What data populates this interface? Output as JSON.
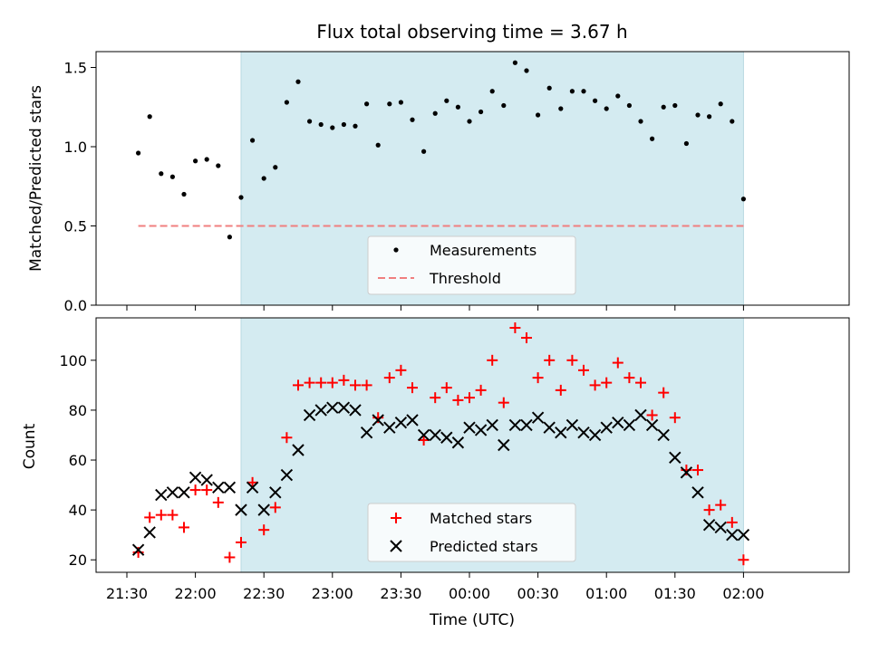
{
  "chart_data": {
    "title": "Flux total observing time = 3.67 h",
    "xlabel": "Time (UTC)",
    "x_ticks": [
      "21:30",
      "22:00",
      "22:30",
      "23:00",
      "23:30",
      "00:00",
      "00:30",
      "01:00",
      "01:30",
      "02:00"
    ],
    "shaded_region": {
      "start_min": 50,
      "end_min": 270,
      "color": "#d4ebf1"
    },
    "colors": {
      "measurements": "#000000",
      "threshold": "#f07f7f",
      "matched": "#ff0000",
      "predicted": "#000000"
    },
    "panels": [
      {
        "type": "scatter",
        "ylabel": "Matched/Predicted stars",
        "ylim": [
          0,
          1.6
        ],
        "y_ticks": [
          "0.0",
          "0.5",
          "1.0",
          "1.5"
        ],
        "legend": {
          "placement": "lower-center",
          "entries": [
            "Measurements",
            "Threshold"
          ]
        },
        "series": [
          {
            "name": "Measurements",
            "marker": "dot",
            "x_min": [
              5,
              10,
              15,
              20,
              25,
              30,
              35,
              40,
              45,
              50,
              55,
              60,
              65,
              70,
              75,
              80,
              85,
              90,
              95,
              100,
              105,
              110,
              115,
              120,
              125,
              130,
              135,
              140,
              145,
              150,
              155,
              160,
              165,
              170,
              175,
              180,
              185,
              190,
              195,
              200,
              205,
              210,
              215,
              220,
              225,
              230,
              235,
              240,
              245,
              250,
              255,
              260,
              265,
              270
            ],
            "y": [
              0.96,
              1.19,
              0.83,
              0.81,
              0.7,
              0.91,
              0.92,
              0.88,
              0.43,
              0.68,
              1.04,
              0.8,
              0.87,
              1.28,
              1.41,
              1.16,
              1.14,
              1.12,
              1.14,
              1.13,
              1.27,
              1.01,
              1.27,
              1.28,
              1.17,
              0.97,
              1.21,
              1.29,
              1.25,
              1.16,
              1.22,
              1.35,
              1.26,
              1.53,
              1.48,
              1.2,
              1.37,
              1.24,
              1.35,
              1.35,
              1.29,
              1.24,
              1.32,
              1.26,
              1.16,
              1.05,
              1.25,
              1.26,
              1.02,
              1.2,
              1.19,
              1.27,
              1.16,
              0.67
            ]
          },
          {
            "name": "Threshold",
            "marker": "dashed-line",
            "x_min": [
              5,
              270
            ],
            "y": [
              0.5,
              0.5
            ]
          }
        ]
      },
      {
        "type": "scatter",
        "ylabel": "Count",
        "ylim": [
          15,
          117
        ],
        "y_ticks": [
          "20",
          "40",
          "60",
          "80",
          "100"
        ],
        "legend": {
          "placement": "lower-center",
          "entries": [
            "Matched stars",
            "Predicted stars"
          ]
        },
        "series": [
          {
            "name": "Matched stars",
            "marker": "plus",
            "x_min": [
              5,
              10,
              15,
              20,
              25,
              30,
              35,
              40,
              45,
              50,
              55,
              60,
              65,
              70,
              75,
              80,
              85,
              90,
              95,
              100,
              105,
              110,
              115,
              120,
              125,
              130,
              135,
              140,
              145,
              150,
              155,
              160,
              165,
              170,
              175,
              180,
              185,
              190,
              195,
              200,
              205,
              210,
              215,
              220,
              225,
              230,
              235,
              240,
              245,
              250,
              255,
              260,
              265,
              270
            ],
            "y": [
              23,
              37,
              38,
              38,
              33,
              48,
              48,
              43,
              21,
              27,
              51,
              32,
              41,
              69,
              90,
              91,
              91,
              91,
              92,
              90,
              90,
              77,
              93,
              96,
              89,
              68,
              85,
              89,
              84,
              85,
              88,
              100,
              83,
              113,
              109,
              93,
              100,
              88,
              100,
              96,
              90,
              91,
              99,
              93,
              91,
              78,
              87,
              77,
              56,
              56,
              40,
              42,
              35,
              20
            ]
          },
          {
            "name": "Predicted stars",
            "marker": "x",
            "x_min": [
              5,
              10,
              15,
              20,
              25,
              30,
              35,
              40,
              45,
              50,
              55,
              60,
              65,
              70,
              75,
              80,
              85,
              90,
              95,
              100,
              105,
              110,
              115,
              120,
              125,
              130,
              135,
              140,
              145,
              150,
              155,
              160,
              165,
              170,
              175,
              180,
              185,
              190,
              195,
              200,
              205,
              210,
              215,
              220,
              225,
              230,
              235,
              240,
              245,
              250,
              255,
              260,
              265,
              270
            ],
            "y": [
              24,
              31,
              46,
              47,
              47,
              53,
              52,
              49,
              49,
              40,
              49,
              40,
              47,
              54,
              64,
              78,
              80,
              81,
              81,
              80,
              71,
              76,
              73,
              75,
              76,
              70,
              70,
              69,
              67,
              73,
              72,
              74,
              66,
              74,
              74,
              77,
              73,
              71,
              74,
              71,
              70,
              73,
              75,
              74,
              78,
              74,
              70,
              61,
              55,
              47,
              34,
              33,
              30,
              30
            ]
          }
        ]
      }
    ]
  }
}
